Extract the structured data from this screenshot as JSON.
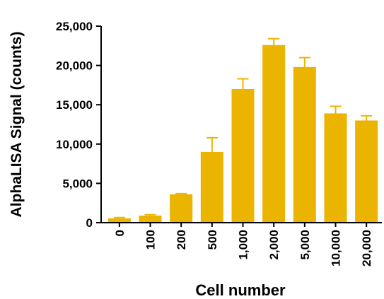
{
  "chart_data": {
    "type": "bar",
    "title": "",
    "xlabel": "Cell number",
    "ylabel": "AlphaLISA Signal (counts)",
    "categories": [
      "0",
      "100",
      "200",
      "500",
      "1,000",
      "2,000",
      "5,000",
      "10,000",
      "20,000"
    ],
    "values": [
      550,
      900,
      3600,
      9000,
      17000,
      22600,
      19800,
      13900,
      13000
    ],
    "error_plus": [
      100,
      120,
      100,
      1800,
      1300,
      800,
      1200,
      900,
      600
    ],
    "ylim": [
      0,
      25000
    ],
    "yticks": [
      0,
      5000,
      10000,
      15000,
      20000,
      25000
    ],
    "ytick_labels": [
      "0",
      "5,000",
      "10,000",
      "15,000",
      "20,000",
      "25,000"
    ],
    "grid": false,
    "legend": "none",
    "bar_color": "#EBB400"
  }
}
